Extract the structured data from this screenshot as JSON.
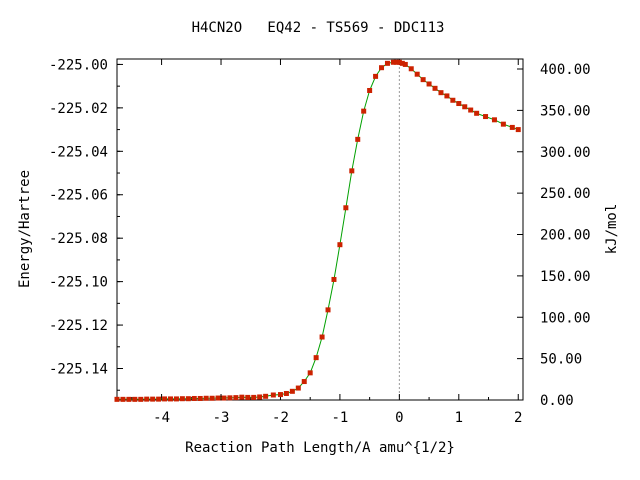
{
  "chart_data": {
    "type": "scatter",
    "title": "H4CN2O   EQ42 - TS569 - DDC113",
    "xlabel": "Reaction Path Length/A amu^{1/2}",
    "ylabel": "Energy/Hartree",
    "y2label": "kJ/mol",
    "xlim": [
      -4.75,
      2.08
    ],
    "ylim": [
      -225.1545,
      -224.9975
    ],
    "y2lim": [
      0.0,
      412.1
    ],
    "x_ticks": [
      -4,
      -3,
      -2,
      -1,
      0,
      1,
      2
    ],
    "x_tick_labels": [
      "-4",
      "-3",
      "-2",
      "-1",
      "0",
      "1",
      "2"
    ],
    "y_ticks": [
      -225.0,
      -225.02,
      -225.04,
      -225.06,
      -225.08,
      -225.1,
      -225.12,
      -225.14
    ],
    "y_tick_labels": [
      "-225.00",
      "-225.02",
      "-225.04",
      "-225.06",
      "-225.08",
      "-225.10",
      "-225.12",
      "-225.14"
    ],
    "y2_ticks": [
      0,
      50,
      100,
      150,
      200,
      250,
      300,
      350,
      400
    ],
    "y2_tick_labels": [
      "0.00",
      "50.00",
      "100.00",
      "150.00",
      "200.00",
      "250.00",
      "300.00",
      "350.00",
      "400.00"
    ],
    "grid": false,
    "ts_marker_x": 0.0,
    "colors": {
      "line": "#00a000",
      "marker": "#cc2200",
      "ts_line": "#999999"
    },
    "series": [
      {
        "x": [
          -4.75,
          -4.65,
          -4.55,
          -4.45,
          -4.35,
          -4.25,
          -4.15,
          -4.05,
          -3.95,
          -3.85,
          -3.75,
          -3.65,
          -3.55,
          -3.45,
          -3.35,
          -3.25,
          -3.15,
          -3.05,
          -2.95,
          -2.85,
          -2.75,
          -2.65,
          -2.55,
          -2.45,
          -2.35,
          -2.25,
          -2.12,
          -2.0,
          -1.9,
          -1.8,
          -1.7,
          -1.6,
          -1.5,
          -1.4,
          -1.3,
          -1.2,
          -1.1,
          -1.0,
          -0.9,
          -0.8,
          -0.7,
          -0.6,
          -0.5,
          -0.4,
          -0.3,
          -0.2,
          -0.1,
          -0.05,
          0.0,
          0.05,
          0.1,
          0.2,
          0.3,
          0.4,
          0.5,
          0.6,
          0.7,
          0.8,
          0.9,
          1.0,
          1.1,
          1.2,
          1.3,
          1.45,
          1.6,
          1.75,
          1.9,
          2.0
        ],
        "y": [
          -225.1542,
          -225.1542,
          -225.1542,
          -225.1542,
          -225.1542,
          -225.1541,
          -225.1541,
          -225.1541,
          -225.154,
          -225.154,
          -225.154,
          -225.1539,
          -225.1539,
          -225.1538,
          -225.1538,
          -225.1537,
          -225.1537,
          -225.1536,
          -225.1536,
          -225.1535,
          -225.1534,
          -225.1532,
          -225.1533,
          -225.1533,
          -225.1531,
          -225.1528,
          -225.1522,
          -225.152,
          -225.1515,
          -225.1505,
          -225.149,
          -225.146,
          -225.142,
          -225.135,
          -225.1255,
          -225.113,
          -225.099,
          -225.083,
          -225.066,
          -225.049,
          -225.0345,
          -225.0215,
          -225.012,
          -225.0055,
          -225.0015,
          -224.9995,
          -224.999,
          -224.999,
          -224.999,
          -224.9995,
          -225.0,
          -225.002,
          -225.0045,
          -225.007,
          -225.009,
          -225.011,
          -225.013,
          -225.0145,
          -225.0165,
          -225.018,
          -225.0195,
          -225.021,
          -225.0225,
          -225.024,
          -225.0255,
          -225.0275,
          -225.029,
          -225.03
        ]
      }
    ]
  }
}
